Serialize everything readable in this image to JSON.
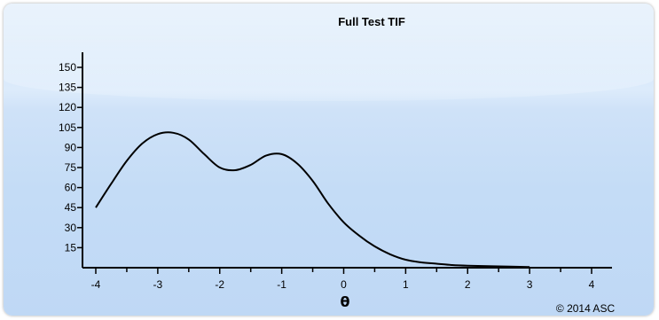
{
  "chart_data": {
    "type": "line",
    "title": "Full Test TIF",
    "xlabel": "θ",
    "ylabel": "",
    "xlim": [
      -4,
      4
    ],
    "ylim": [
      0,
      150
    ],
    "xticks": [
      -4,
      -3,
      -2,
      -1,
      0,
      1,
      2,
      3,
      4
    ],
    "yticks": [
      15,
      30,
      45,
      60,
      75,
      90,
      105,
      120,
      135,
      150
    ],
    "grid": false,
    "series": [
      {
        "x": [
          -4.0,
          -3.75,
          -3.5,
          -3.25,
          -3.0,
          -2.75,
          -2.5,
          -2.25,
          -2.0,
          -1.75,
          -1.5,
          -1.25,
          -1.0,
          -0.75,
          -0.5,
          -0.25,
          0.0,
          0.25,
          0.5,
          0.75,
          1.0,
          1.25,
          1.5,
          1.75,
          2.0,
          2.5,
          3.0
        ],
        "y": [
          45,
          63,
          80,
          93,
          100,
          101,
          96,
          85,
          75,
          73,
          77,
          84,
          85,
          78,
          65,
          48,
          34,
          24,
          16,
          10,
          6,
          4,
          3,
          2,
          1.5,
          1,
          0.5
        ],
        "color": "#000000"
      }
    ],
    "annotations": [
      "© 2014 ASC"
    ]
  }
}
